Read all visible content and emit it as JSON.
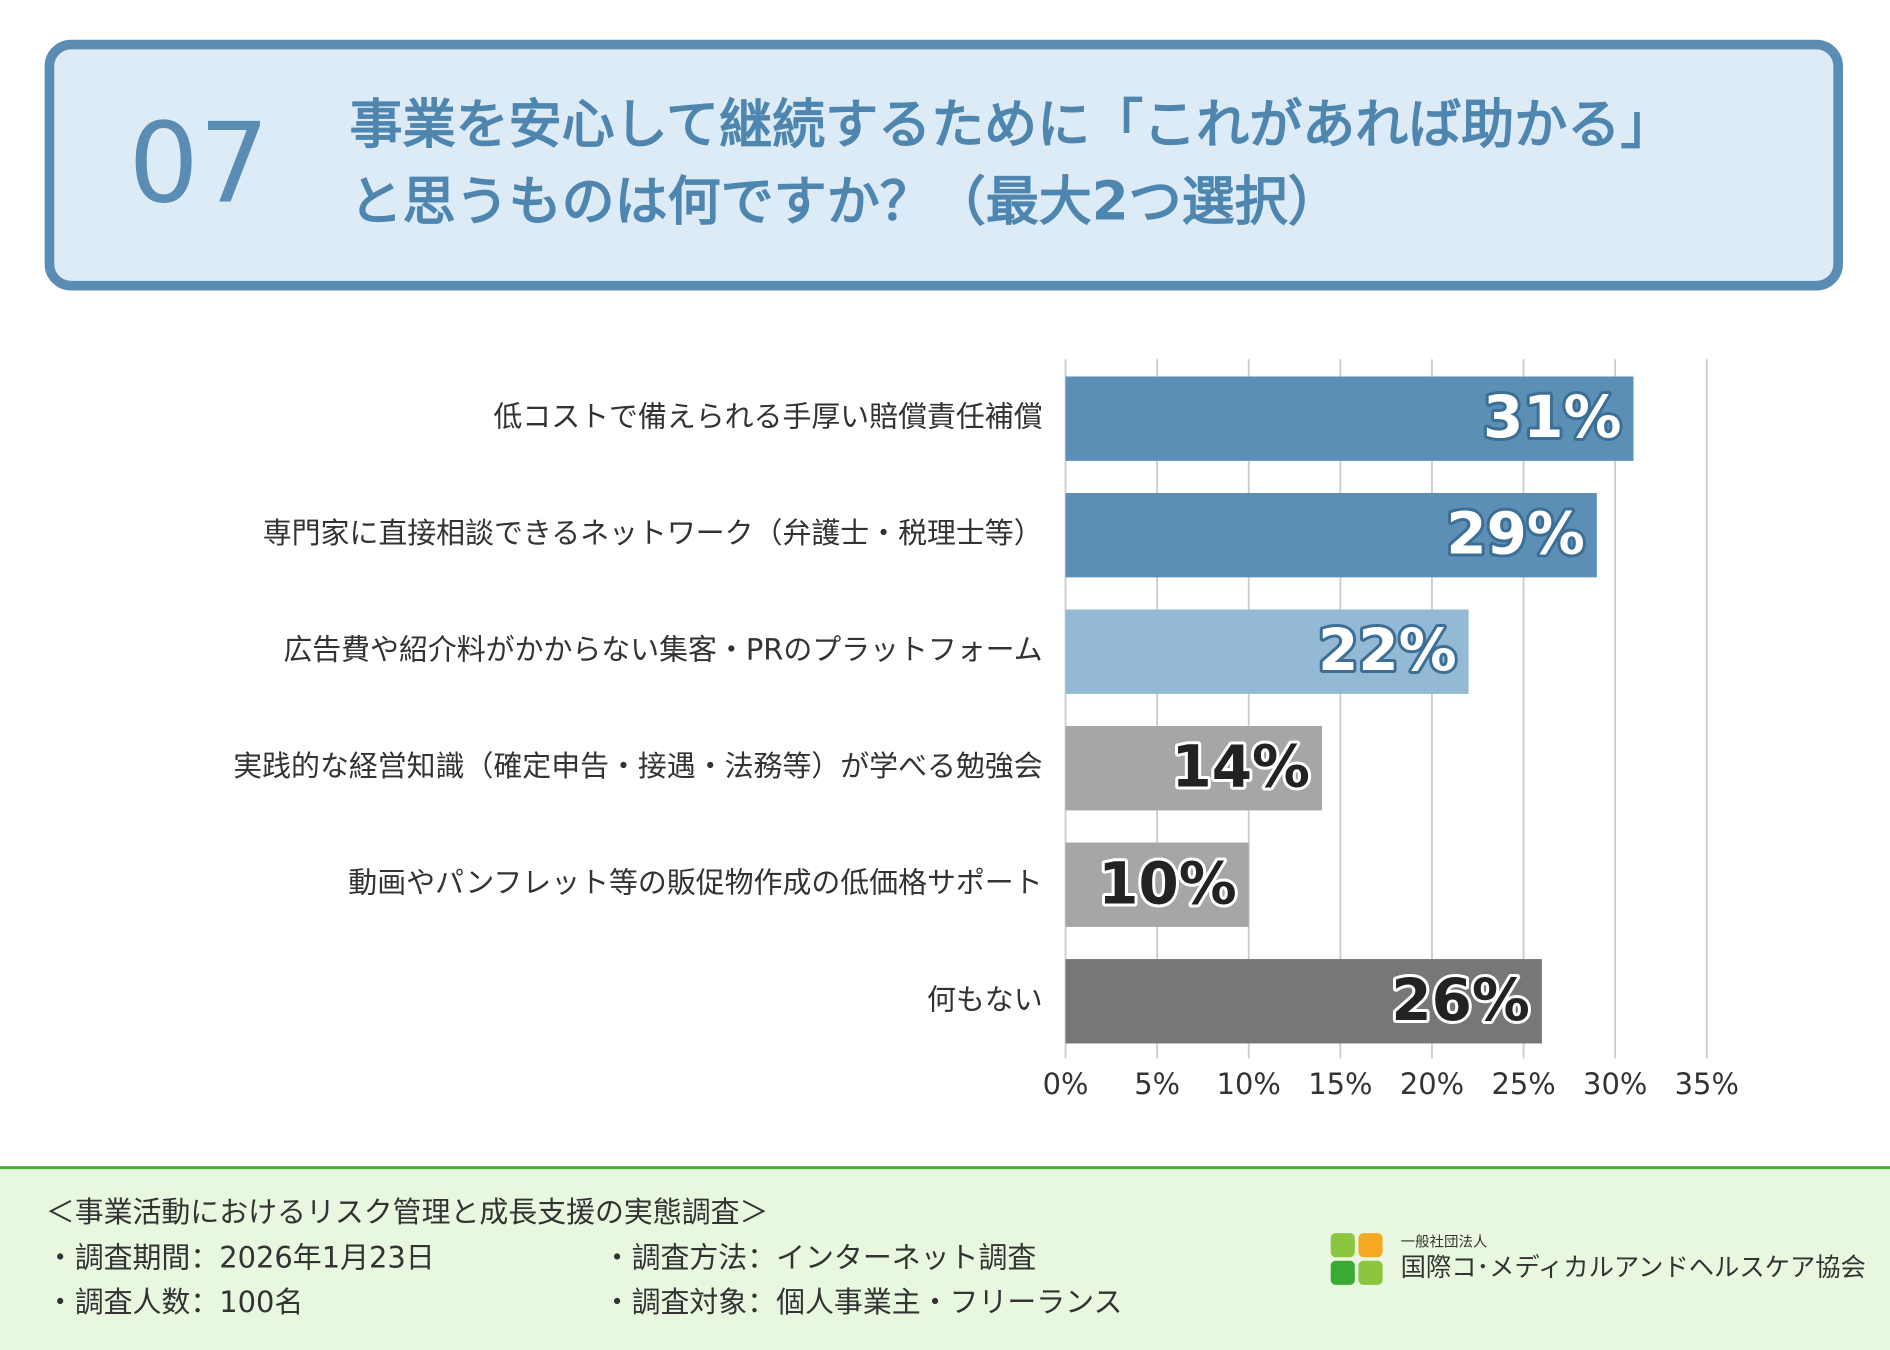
{
  "header": {
    "number": "07",
    "title_lines": [
      "事業を安心して継続するために「これがあれば助かる」",
      "と思うものは何ですか？（最大2つ選択）"
    ]
  },
  "chart_data": {
    "type": "hbar",
    "categories": [
      "低コストで備えられる手厚い賠償責任補償",
      "専門家に直接相談できるネットワーク（弁護士・税理士等）",
      "広告費や紹介料がかからない集客・PRのプラットフォーム",
      "実践的な経営知識（確定申告・接遇・法務等）が学べる勉強会",
      "動画やパンフレット等の販促物作成の低価格サポート",
      "何もない"
    ],
    "values": [
      31,
      29,
      22,
      14,
      10,
      26
    ],
    "value_labels": [
      "31%",
      "29%",
      "22%",
      "14%",
      "10%",
      "26%"
    ],
    "colors": [
      "#5b8fb5",
      "#5b8fb5",
      "#93b9d4",
      "#a6a6a6",
      "#a6a6a6",
      "#777777"
    ],
    "xlim": [
      0,
      35
    ],
    "xticks": [
      {
        "value": 0,
        "label": "0%"
      },
      {
        "value": 5,
        "label": "5%"
      },
      {
        "value": 10,
        "label": "10%"
      },
      {
        "value": 15,
        "label": "15%"
      },
      {
        "value": 20,
        "label": "20%"
      },
      {
        "value": 25,
        "label": "25%"
      },
      {
        "value": 30,
        "label": "30%"
      },
      {
        "value": 35,
        "label": "35%"
      }
    ],
    "grid": true
  },
  "footer": {
    "survey_title": "＜事業活動におけるリスク管理と成長支援の実態調査＞",
    "items": [
      "・調査期間：2026年1月23日",
      "・調査方法：インターネット調査",
      "・調査人数：100名",
      "・調査対象：個人事業主・フリーランス"
    ]
  },
  "logo": {
    "subtitle": "一般社団法人",
    "name": "国際コ･メディカルアンドヘルスケア協会"
  }
}
